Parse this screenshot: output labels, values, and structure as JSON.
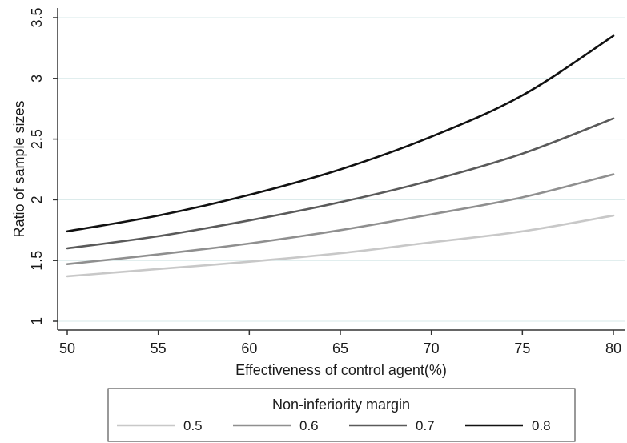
{
  "chart_data": {
    "type": "line",
    "xlabel": "Effectiveness of control agent(%)",
    "ylabel": "Ratio of sample sizes",
    "xlim": [
      50,
      80
    ],
    "ylim": [
      1,
      3.5
    ],
    "xticks": [
      50,
      55,
      60,
      65,
      70,
      75,
      80
    ],
    "yticks": [
      1,
      1.5,
      2,
      2.5,
      3,
      3.5
    ],
    "ytick_labels": [
      "1",
      "1.5",
      "2",
      "2.5",
      "3",
      "3.5"
    ],
    "grid": true,
    "legend": {
      "title": "Non-inferiority margin",
      "placement": "bottom"
    },
    "x": [
      50,
      55,
      60,
      65,
      70,
      75,
      80
    ],
    "series": [
      {
        "name": "0.5",
        "color": "#c8c8c8",
        "values": [
          1.37,
          1.43,
          1.49,
          1.56,
          1.65,
          1.74,
          1.87
        ]
      },
      {
        "name": "0.6",
        "color": "#8f8f8f",
        "values": [
          1.47,
          1.55,
          1.64,
          1.75,
          1.88,
          2.02,
          2.21
        ]
      },
      {
        "name": "0.7",
        "color": "#5a5a5a",
        "values": [
          1.6,
          1.7,
          1.83,
          1.98,
          2.16,
          2.38,
          2.67
        ]
      },
      {
        "name": "0.8",
        "color": "#111111",
        "values": [
          1.74,
          1.87,
          2.04,
          2.25,
          2.52,
          2.86,
          3.35
        ]
      }
    ]
  }
}
